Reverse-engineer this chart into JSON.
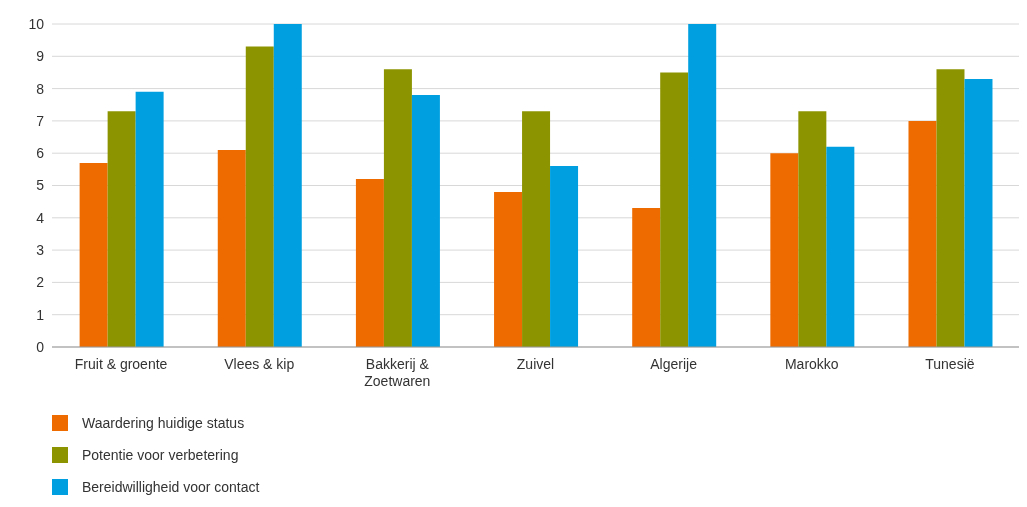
{
  "chart_data": {
    "type": "bar",
    "categories": [
      "Fruit & groente",
      "Vlees & kip",
      "Bakkerij & Zoetwaren",
      "Zuivel",
      "Algerije",
      "Marokko",
      "Tunesië"
    ],
    "series": [
      {
        "name": "Waardering huidige status",
        "color": "#ee6b00",
        "values": [
          5.7,
          6.1,
          5.2,
          4.8,
          4.3,
          6.0,
          7.0
        ]
      },
      {
        "name": "Potentie voor verbetering",
        "color": "#8c9400",
        "values": [
          7.3,
          9.3,
          8.6,
          7.3,
          8.5,
          7.3,
          8.6
        ]
      },
      {
        "name": "Bereidwilligheid voor contact",
        "color": "#00a0e0",
        "values": [
          7.9,
          10,
          7.8,
          5.6,
          10,
          6.2,
          8.3
        ]
      }
    ],
    "ylim": [
      0,
      10
    ],
    "yticks": [
      0,
      1,
      2,
      3,
      4,
      5,
      6,
      7,
      8,
      9,
      10
    ],
    "grid": "y",
    "legend": "bottom left"
  }
}
